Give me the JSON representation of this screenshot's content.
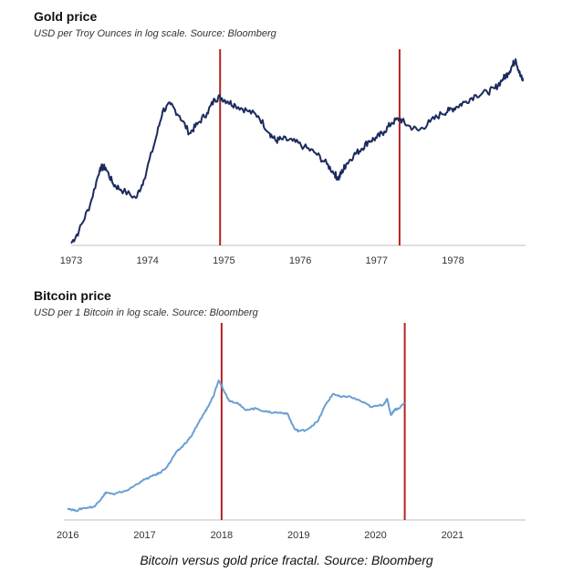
{
  "caption": "Bitcoin versus gold price fractal. Source: Bloomberg",
  "chart_data": [
    {
      "type": "line",
      "title": "Gold price",
      "subtitle": "USD per Troy Ounces in log scale. Source: Bloomberg",
      "x_ticks": [
        "1973",
        "1974",
        "1975",
        "1976",
        "1977",
        "1978"
      ],
      "xlim": [
        1973.0,
        1978.95
      ],
      "ylim": [
        65,
        260
      ],
      "y_scale": "log",
      "grid": false,
      "line_color": "#1b2b5e",
      "marker_color": "#b22222",
      "vertical_markers": [
        1974.95,
        1977.3
      ],
      "series": [
        {
          "x": [
            1973.0,
            1973.1,
            1973.25,
            1973.38,
            1973.45,
            1973.55,
            1973.65,
            1973.85,
            1973.95,
            1974.1,
            1974.2,
            1974.3,
            1974.42,
            1974.55,
            1974.65,
            1974.78,
            1974.88,
            1974.95,
            1975.05,
            1975.15,
            1975.3,
            1975.45,
            1975.6,
            1975.68,
            1975.75,
            1975.9,
            1976.05,
            1976.2,
            1976.35,
            1976.45,
            1976.5,
            1976.55,
            1976.6,
            1976.7,
            1976.8,
            1976.9,
            1977.0,
            1977.1,
            1977.2,
            1977.3,
            1977.4,
            1977.55,
            1977.7,
            1977.85,
            1977.95,
            1978.05,
            1978.15,
            1978.3,
            1978.45,
            1978.55,
            1978.65,
            1978.72,
            1978.78,
            1978.82,
            1978.88,
            1978.92
          ],
          "y": [
            66,
            72,
            88,
            115,
            115,
            102,
            98,
            92,
            105,
            140,
            175,
            183,
            168,
            148,
            158,
            172,
            190,
            193,
            187,
            182,
            175,
            168,
            148,
            140,
            142,
            140,
            134,
            128,
            118,
            110,
            106,
            112,
            118,
            126,
            132,
            140,
            143,
            150,
            160,
            165,
            157,
            151,
            161,
            171,
            175,
            180,
            186,
            196,
            200,
            206,
            220,
            230,
            244,
            255,
            226,
            217
          ]
        }
      ]
    },
    {
      "type": "line",
      "title": "Bitcoin price",
      "subtitle": "USD per 1 Bitcoin in log scale. Source: Bloomberg",
      "x_ticks": [
        "2016",
        "2017",
        "2018",
        "2019",
        "2020",
        "2021"
      ],
      "xlim": [
        2015.95,
        2021.95
      ],
      "ylim": [
        300,
        25000
      ],
      "y_scale": "log",
      "grid": false,
      "line_color": "#6a9fd4",
      "marker_color": "#b22222",
      "vertical_markers": [
        2018.0,
        2020.38
      ],
      "series": [
        {
          "x": [
            2016.0,
            2016.1,
            2016.2,
            2016.35,
            2016.45,
            2016.5,
            2016.6,
            2016.8,
            2016.95,
            2017.1,
            2017.2,
            2017.3,
            2017.4,
            2017.5,
            2017.6,
            2017.68,
            2017.75,
            2017.82,
            2017.9,
            2017.96,
            2018.0,
            2018.05,
            2018.1,
            2018.2,
            2018.3,
            2018.45,
            2018.6,
            2018.75,
            2018.85,
            2018.95,
            2019.0,
            2019.1,
            2019.25,
            2019.35,
            2019.45,
            2019.55,
            2019.65,
            2019.8,
            2019.95,
            2020.1,
            2020.15,
            2020.2,
            2020.25,
            2020.3,
            2020.38
          ],
          "y": [
            420,
            390,
            420,
            440,
            580,
            660,
            620,
            720,
            900,
            1050,
            1150,
            1400,
            2000,
            2500,
            3200,
            4400,
            5800,
            7500,
            10500,
            16000,
            14000,
            11000,
            9000,
            8500,
            7000,
            7200,
            6500,
            6400,
            6300,
            4000,
            3800,
            3900,
            5000,
            8000,
            11000,
            10000,
            10200,
            9000,
            7500,
            8000,
            9500,
            6000,
            7000,
            7200,
            8500
          ]
        }
      ]
    }
  ]
}
